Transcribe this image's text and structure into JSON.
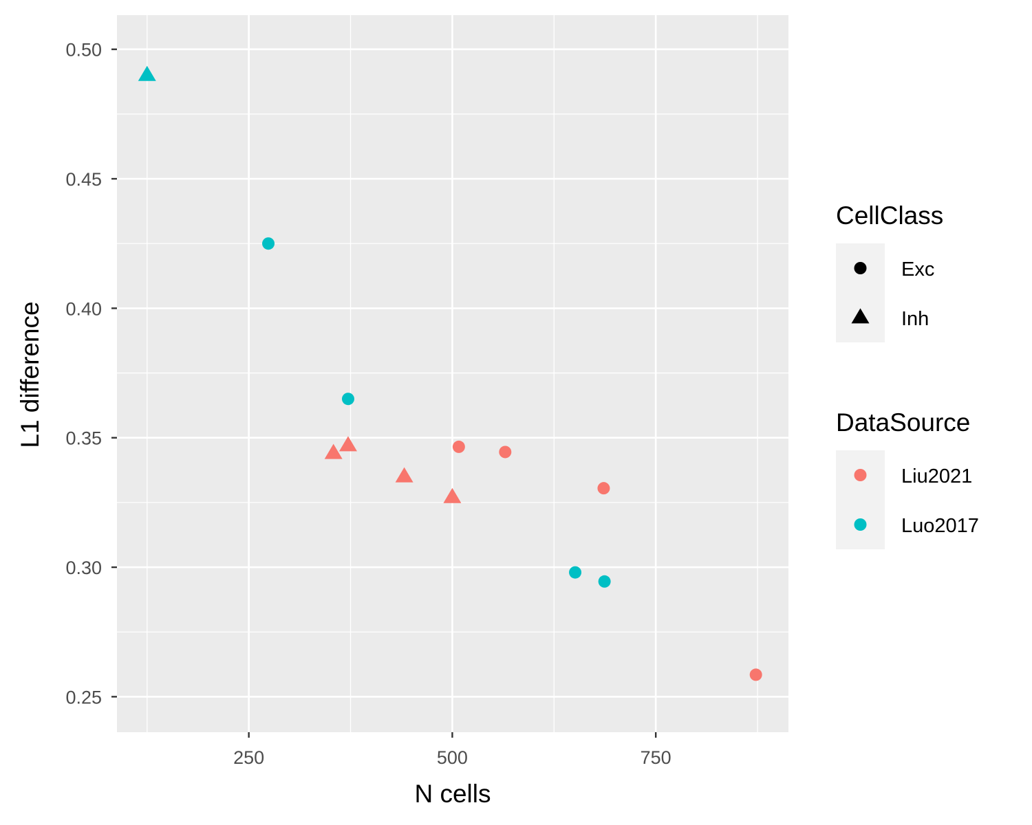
{
  "chart_data": {
    "type": "scatter",
    "xlabel": "N cells",
    "ylabel": "L1 difference",
    "xlim": [
      88,
      913
    ],
    "ylim": [
      0.2363,
      0.5132
    ],
    "x_ticks": [
      250,
      500,
      750
    ],
    "x_tick_labels": [
      "250",
      "500",
      "750"
    ],
    "x_minor_ticks": [
      125,
      375,
      625,
      875
    ],
    "y_ticks": [
      0.25,
      0.3,
      0.35,
      0.4,
      0.45,
      0.5
    ],
    "y_tick_labels": [
      "0.25",
      "0.30",
      "0.35",
      "0.40",
      "0.45",
      "0.50"
    ],
    "y_minor_ticks": [
      0.275,
      0.325,
      0.375,
      0.425,
      0.475
    ],
    "grid": true,
    "legend_position": "right",
    "legends": [
      {
        "title": "CellClass",
        "kind": "shape",
        "items": [
          {
            "label": "Exc",
            "shape": "circle"
          },
          {
            "label": "Inh",
            "shape": "triangle"
          }
        ]
      },
      {
        "title": "DataSource",
        "kind": "color",
        "items": [
          {
            "label": "Liu2021",
            "color": "#F8766D"
          },
          {
            "label": "Luo2017",
            "color": "#00BFC4"
          }
        ]
      }
    ],
    "points": [
      {
        "x": 125,
        "y": 0.49,
        "CellClass": "Inh",
        "DataSource": "Luo2017"
      },
      {
        "x": 274,
        "y": 0.425,
        "CellClass": "Exc",
        "DataSource": "Luo2017"
      },
      {
        "x": 372,
        "y": 0.365,
        "CellClass": "Exc",
        "DataSource": "Luo2017"
      },
      {
        "x": 354,
        "y": 0.344,
        "CellClass": "Inh",
        "DataSource": "Liu2021"
      },
      {
        "x": 372,
        "y": 0.347,
        "CellClass": "Inh",
        "DataSource": "Liu2021"
      },
      {
        "x": 441,
        "y": 0.335,
        "CellClass": "Inh",
        "DataSource": "Liu2021"
      },
      {
        "x": 500,
        "y": 0.327,
        "CellClass": "Inh",
        "DataSource": "Liu2021"
      },
      {
        "x": 508,
        "y": 0.3465,
        "CellClass": "Exc",
        "DataSource": "Liu2021"
      },
      {
        "x": 565,
        "y": 0.3445,
        "CellClass": "Exc",
        "DataSource": "Liu2021"
      },
      {
        "x": 686,
        "y": 0.3305,
        "CellClass": "Exc",
        "DataSource": "Liu2021"
      },
      {
        "x": 651,
        "y": 0.298,
        "CellClass": "Exc",
        "DataSource": "Luo2017"
      },
      {
        "x": 687,
        "y": 0.2945,
        "CellClass": "Exc",
        "DataSource": "Luo2017"
      },
      {
        "x": 873,
        "y": 0.2585,
        "CellClass": "Exc",
        "DataSource": "Liu2021"
      }
    ],
    "colors": {
      "Liu2021": "#F8766D",
      "Luo2017": "#00BFC4",
      "panel_background": "#EBEBEB",
      "grid": "#FFFFFF",
      "legend_key_background": "#F2F2F2"
    }
  }
}
